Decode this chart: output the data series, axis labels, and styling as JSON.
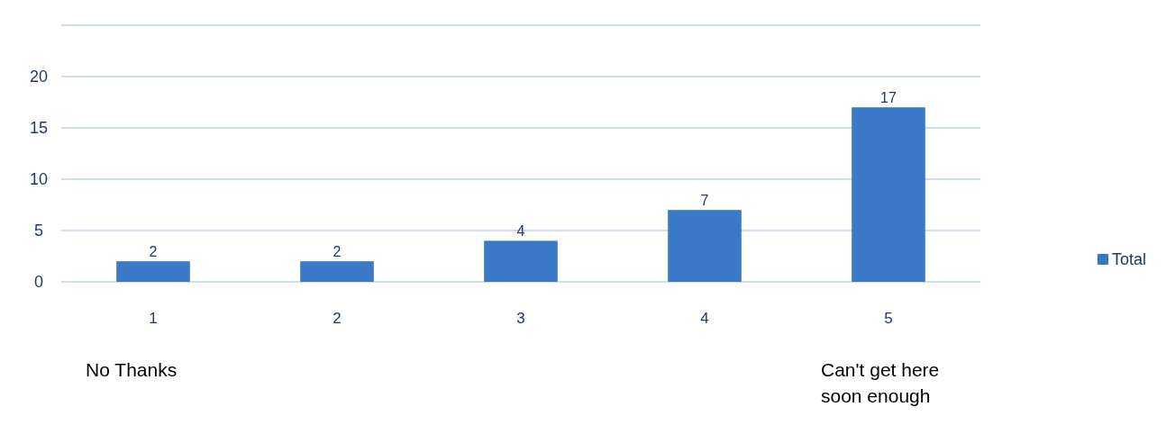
{
  "chart_data": {
    "type": "bar",
    "categories": [
      "1",
      "2",
      "3",
      "4",
      "5"
    ],
    "series": [
      {
        "name": "Total",
        "color": "#3a78c8",
        "values": [
          2,
          2,
          4,
          7,
          17
        ]
      }
    ],
    "ylim": [
      0,
      25
    ],
    "yticks": [
      0,
      5,
      10,
      15,
      20,
      {
        "value": 25,
        "label": null
      }
    ],
    "grid": "y",
    "legend": "right",
    "data_labels": true,
    "annotations": [
      "No Thanks",
      "Can't get here soon enough"
    ]
  }
}
